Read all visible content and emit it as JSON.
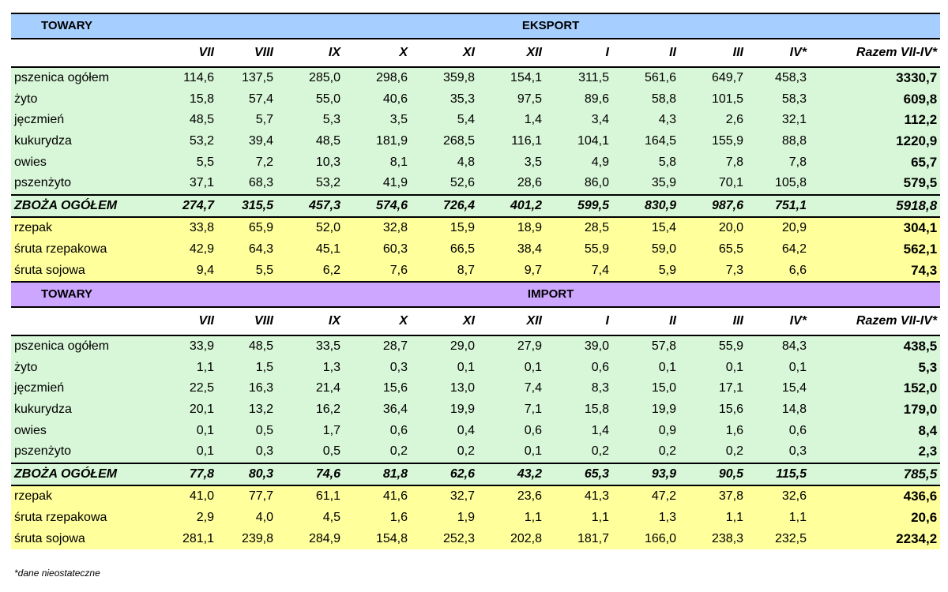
{
  "months": [
    "VII",
    "VIII",
    "IX",
    "X",
    "XI",
    "XII",
    "I",
    "II",
    "III",
    "IV*"
  ],
  "total_header": "Razem VII-IV*",
  "footnote": "*dane nieostateczne",
  "sections": [
    {
      "id": "eksport",
      "towary": "TOWARY",
      "title": "EKSPORT",
      "rows": [
        {
          "kind": "g",
          "label": "pszenica ogółem",
          "values": [
            "114,6",
            "137,5",
            "285,0",
            "298,6",
            "359,8",
            "154,1",
            "311,5",
            "561,6",
            "649,7",
            "458,3"
          ],
          "total": "3330,7"
        },
        {
          "kind": "g",
          "label": "żyto",
          "values": [
            "15,8",
            "57,4",
            "55,0",
            "40,6",
            "35,3",
            "97,5",
            "89,6",
            "58,8",
            "101,5",
            "58,3"
          ],
          "total": "609,8"
        },
        {
          "kind": "g",
          "label": "jęczmień",
          "values": [
            "48,5",
            "5,7",
            "5,3",
            "3,5",
            "5,4",
            "1,4",
            "3,4",
            "4,3",
            "2,6",
            "32,1"
          ],
          "total": "112,2"
        },
        {
          "kind": "g",
          "label": "kukurydza",
          "values": [
            "53,2",
            "39,4",
            "48,5",
            "181,9",
            "268,5",
            "116,1",
            "104,1",
            "164,5",
            "155,9",
            "88,8"
          ],
          "total": "1220,9"
        },
        {
          "kind": "g",
          "label": "owies",
          "values": [
            "5,5",
            "7,2",
            "10,3",
            "8,1",
            "4,8",
            "3,5",
            "4,9",
            "5,8",
            "7,8",
            "7,8"
          ],
          "total": "65,7"
        },
        {
          "kind": "g",
          "label": "pszenżyto",
          "values": [
            "37,1",
            "68,3",
            "53,2",
            "41,9",
            "52,6",
            "28,6",
            "86,0",
            "35,9",
            "70,1",
            "105,8"
          ],
          "total": "579,5"
        },
        {
          "kind": "sum",
          "label": "ZBOŻA OGÓŁEM",
          "values": [
            "274,7",
            "315,5",
            "457,3",
            "574,6",
            "726,4",
            "401,2",
            "599,5",
            "830,9",
            "987,6",
            "751,1"
          ],
          "total": "5918,8"
        },
        {
          "kind": "y",
          "label": "rzepak",
          "values": [
            "33,8",
            "65,9",
            "52,0",
            "32,8",
            "15,9",
            "18,9",
            "28,5",
            "15,4",
            "20,0",
            "20,9"
          ],
          "total": "304,1"
        },
        {
          "kind": "y",
          "label": "śruta rzepakowa",
          "values": [
            "42,9",
            "64,3",
            "45,1",
            "60,3",
            "66,5",
            "38,4",
            "55,9",
            "59,0",
            "65,5",
            "64,2"
          ],
          "total": "562,1"
        },
        {
          "kind": "y",
          "label": "śruta sojowa",
          "values": [
            "9,4",
            "5,5",
            "6,2",
            "7,6",
            "8,7",
            "9,7",
            "7,4",
            "5,9",
            "7,3",
            "6,6"
          ],
          "total": "74,3"
        }
      ]
    },
    {
      "id": "import",
      "towary": "TOWARY",
      "title": "IMPORT",
      "rows": [
        {
          "kind": "g",
          "label": "pszenica ogółem",
          "values": [
            "33,9",
            "48,5",
            "33,5",
            "28,7",
            "29,0",
            "27,9",
            "39,0",
            "57,8",
            "55,9",
            "84,3"
          ],
          "total": "438,5"
        },
        {
          "kind": "g",
          "label": "żyto",
          "values": [
            "1,1",
            "1,5",
            "1,3",
            "0,3",
            "0,1",
            "0,1",
            "0,6",
            "0,1",
            "0,1",
            "0,1"
          ],
          "total": "5,3"
        },
        {
          "kind": "g",
          "label": "jęczmień",
          "values": [
            "22,5",
            "16,3",
            "21,4",
            "15,6",
            "13,0",
            "7,4",
            "8,3",
            "15,0",
            "17,1",
            "15,4"
          ],
          "total": "152,0"
        },
        {
          "kind": "g",
          "label": "kukurydza",
          "values": [
            "20,1",
            "13,2",
            "16,2",
            "36,4",
            "19,9",
            "7,1",
            "15,8",
            "19,9",
            "15,6",
            "14,8"
          ],
          "total": "179,0"
        },
        {
          "kind": "g",
          "label": "owies",
          "values": [
            "0,1",
            "0,5",
            "1,7",
            "0,6",
            "0,4",
            "0,6",
            "1,4",
            "0,9",
            "1,6",
            "0,6"
          ],
          "total": "8,4"
        },
        {
          "kind": "g",
          "label": "pszenżyto",
          "values": [
            "0,1",
            "0,3",
            "0,5",
            "0,2",
            "0,2",
            "0,1",
            "0,2",
            "0,2",
            "0,2",
            "0,3"
          ],
          "total": "2,3"
        },
        {
          "kind": "sum",
          "label": "ZBOŻA OGÓŁEM",
          "values": [
            "77,8",
            "80,3",
            "74,6",
            "81,8",
            "62,6",
            "43,2",
            "65,3",
            "93,9",
            "90,5",
            "115,5"
          ],
          "total": "785,5"
        },
        {
          "kind": "y",
          "label": "rzepak",
          "values": [
            "41,0",
            "77,7",
            "61,1",
            "41,6",
            "32,7",
            "23,6",
            "41,3",
            "47,2",
            "37,8",
            "32,6"
          ],
          "total": "436,6"
        },
        {
          "kind": "y",
          "label": "śruta rzepakowa",
          "values": [
            "2,9",
            "4,0",
            "4,5",
            "1,6",
            "1,9",
            "1,1",
            "1,1",
            "1,3",
            "1,1",
            "1,1"
          ],
          "total": "20,6"
        },
        {
          "kind": "y",
          "label": "śruta sojowa",
          "values": [
            "281,1",
            "239,8",
            "284,9",
            "154,8",
            "252,3",
            "202,8",
            "181,7",
            "166,0",
            "238,3",
            "232,5"
          ],
          "total": "2234,2"
        }
      ]
    }
  ]
}
